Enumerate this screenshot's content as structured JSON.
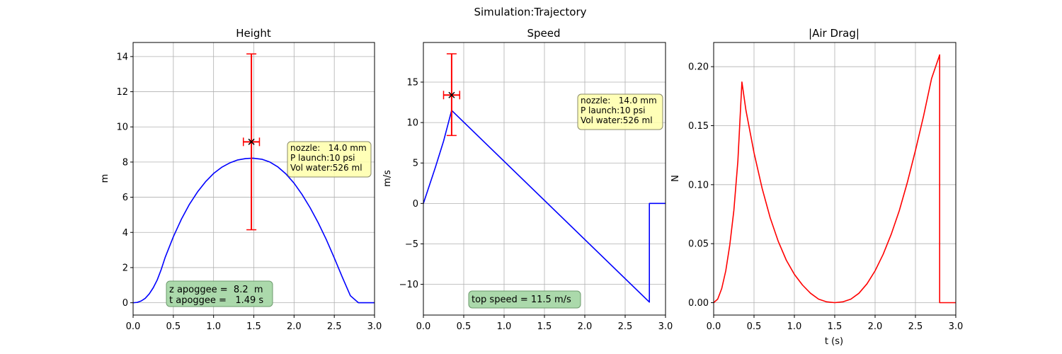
{
  "figure": {
    "suptitle": "Simulation:Trajectory"
  },
  "colors": {
    "series_blue": "#0000ff",
    "series_red": "#ff0000",
    "grid": "#b0b0b0",
    "green_box": "#a6d7a6",
    "yellow_box": "#ffffaa",
    "marker": "#000000"
  },
  "chart_data": [
    {
      "type": "line",
      "title": "Height",
      "xlabel": "",
      "ylabel": "m",
      "xlim": [
        0,
        3
      ],
      "ylim": [
        -0.7,
        14.8
      ],
      "xticks": [
        0,
        0.5,
        1,
        1.5,
        2,
        2.5,
        3
      ],
      "xtick_labels": [
        "0.0",
        "0.5",
        "1.0",
        "1.5",
        "2.0",
        "2.5",
        "3.0"
      ],
      "yticks": [
        0,
        2,
        4,
        6,
        8,
        10,
        12,
        14
      ],
      "ytick_labels": [
        "0",
        "2",
        "4",
        "6",
        "8",
        "10",
        "12",
        "14"
      ],
      "grid": true,
      "series": [
        {
          "color": "#0000ff",
          "x": [
            0,
            0.05,
            0.1,
            0.15,
            0.2,
            0.25,
            0.3,
            0.35,
            0.4,
            0.5,
            0.6,
            0.7,
            0.8,
            0.9,
            1.0,
            1.1,
            1.2,
            1.3,
            1.4,
            1.49,
            1.6,
            1.7,
            1.8,
            1.9,
            2.0,
            2.1,
            2.2,
            2.3,
            2.4,
            2.5,
            2.6,
            2.7,
            2.8,
            2.81,
            3.0
          ],
          "y": [
            0,
            0.02,
            0.1,
            0.25,
            0.5,
            0.85,
            1.3,
            1.9,
            2.6,
            3.75,
            4.75,
            5.6,
            6.3,
            6.88,
            7.35,
            7.7,
            7.95,
            8.12,
            8.2,
            8.22,
            8.16,
            8.0,
            7.72,
            7.32,
            6.8,
            6.15,
            5.4,
            4.55,
            3.6,
            2.55,
            1.45,
            0.4,
            0,
            0,
            0
          ]
        }
      ],
      "errorbar": {
        "x": 1.47,
        "y": 9.15,
        "xerr": 0.1,
        "y_low": 4.15,
        "y_high": 14.15
      },
      "info_box": {
        "lines": [
          "nozzle:   14.0 mm",
          "P launch:10 psi",
          "Vol water:526 ml"
        ]
      },
      "result_box": {
        "lines": [
          "z apoggee =  8.2  m",
          "t apoggee =   1.49 s"
        ]
      }
    },
    {
      "type": "line",
      "title": "Speed",
      "xlabel": "",
      "ylabel": "m/s",
      "xlim": [
        0,
        3
      ],
      "ylim": [
        -13.8,
        19.9
      ],
      "xticks": [
        0,
        0.5,
        1,
        1.5,
        2,
        2.5,
        3
      ],
      "xtick_labels": [
        "0.0",
        "0.5",
        "1.0",
        "1.5",
        "2.0",
        "2.5",
        "3.0"
      ],
      "yticks": [
        -10,
        -5,
        0,
        5,
        10,
        15
      ],
      "ytick_labels": [
        "−10",
        "−5",
        "0",
        "5",
        "10",
        "15"
      ],
      "grid": true,
      "series": [
        {
          "color": "#0000ff",
          "x": [
            0,
            0.05,
            0.1,
            0.15,
            0.2,
            0.25,
            0.3,
            0.35,
            2.8,
            2.8,
            3.0
          ],
          "y": [
            0,
            1.5,
            3.0,
            4.5,
            6.1,
            7.7,
            9.6,
            11.5,
            -12.2,
            0,
            0
          ]
        }
      ],
      "errorbar": {
        "x": 0.35,
        "y": 13.4,
        "xerr": 0.1,
        "y_low": 8.4,
        "y_high": 18.5
      },
      "info_box": {
        "lines": [
          "nozzle:   14.0 mm",
          "P launch:10 psi",
          "Vol water:526 ml"
        ]
      },
      "result_box": {
        "lines": [
          "top speed = 11.5 m/s"
        ]
      }
    },
    {
      "type": "line",
      "title": "|Air Drag|",
      "xlabel": "t (s)",
      "ylabel": "N",
      "xlim": [
        0,
        3
      ],
      "ylim": [
        -0.0105,
        0.2205
      ],
      "xticks": [
        0,
        0.5,
        1,
        1.5,
        2,
        2.5,
        3
      ],
      "xtick_labels": [
        "0.0",
        "0.5",
        "1.0",
        "1.5",
        "2.0",
        "2.5",
        "3.0"
      ],
      "yticks": [
        0,
        0.05,
        0.1,
        0.15,
        0.2
      ],
      "ytick_labels": [
        "0.00",
        "0.05",
        "0.10",
        "0.15",
        "0.20"
      ],
      "grid": true,
      "series": [
        {
          "color": "#ff0000",
          "x": [
            0,
            0.05,
            0.1,
            0.15,
            0.2,
            0.25,
            0.3,
            0.35,
            0.4,
            0.5,
            0.6,
            0.7,
            0.8,
            0.9,
            1.0,
            1.1,
            1.2,
            1.3,
            1.4,
            1.5,
            1.6,
            1.7,
            1.8,
            1.9,
            2.0,
            2.1,
            2.2,
            2.3,
            2.4,
            2.5,
            2.6,
            2.7,
            2.8,
            2.8,
            3.0
          ],
          "y": [
            0,
            0.003,
            0.012,
            0.027,
            0.049,
            0.078,
            0.12,
            0.187,
            0.163,
            0.127,
            0.097,
            0.072,
            0.052,
            0.036,
            0.024,
            0.015,
            0.008,
            0.003,
            0.0007,
            0,
            0.0007,
            0.003,
            0.008,
            0.016,
            0.027,
            0.041,
            0.058,
            0.078,
            0.102,
            0.129,
            0.158,
            0.19,
            0.21,
            0,
            0
          ]
        }
      ]
    }
  ]
}
